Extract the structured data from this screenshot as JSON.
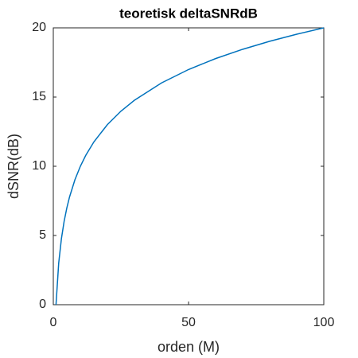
{
  "chart_data": {
    "type": "line",
    "title": "teoretisk deltaSNRdB",
    "xlabel": "orden (M)",
    "ylabel": "dSNR(dB)",
    "x": [
      1,
      2,
      3,
      4,
      5,
      6,
      8,
      10,
      12,
      15,
      20,
      25,
      30,
      40,
      50,
      60,
      70,
      80,
      90,
      100
    ],
    "series": [
      {
        "name": "dSNR",
        "color": "#0072bd",
        "values": [
          0,
          3.01,
          4.77,
          6.02,
          6.99,
          7.78,
          9.03,
          10,
          10.79,
          11.76,
          13.01,
          13.98,
          14.77,
          16.02,
          16.99,
          17.78,
          18.45,
          19.03,
          19.54,
          20
        ]
      }
    ],
    "xlim": [
      0,
      100
    ],
    "xticks": [
      0,
      50,
      100
    ],
    "ylim": [
      0,
      20
    ],
    "yticks": [
      0,
      5,
      10,
      15,
      20
    ]
  }
}
